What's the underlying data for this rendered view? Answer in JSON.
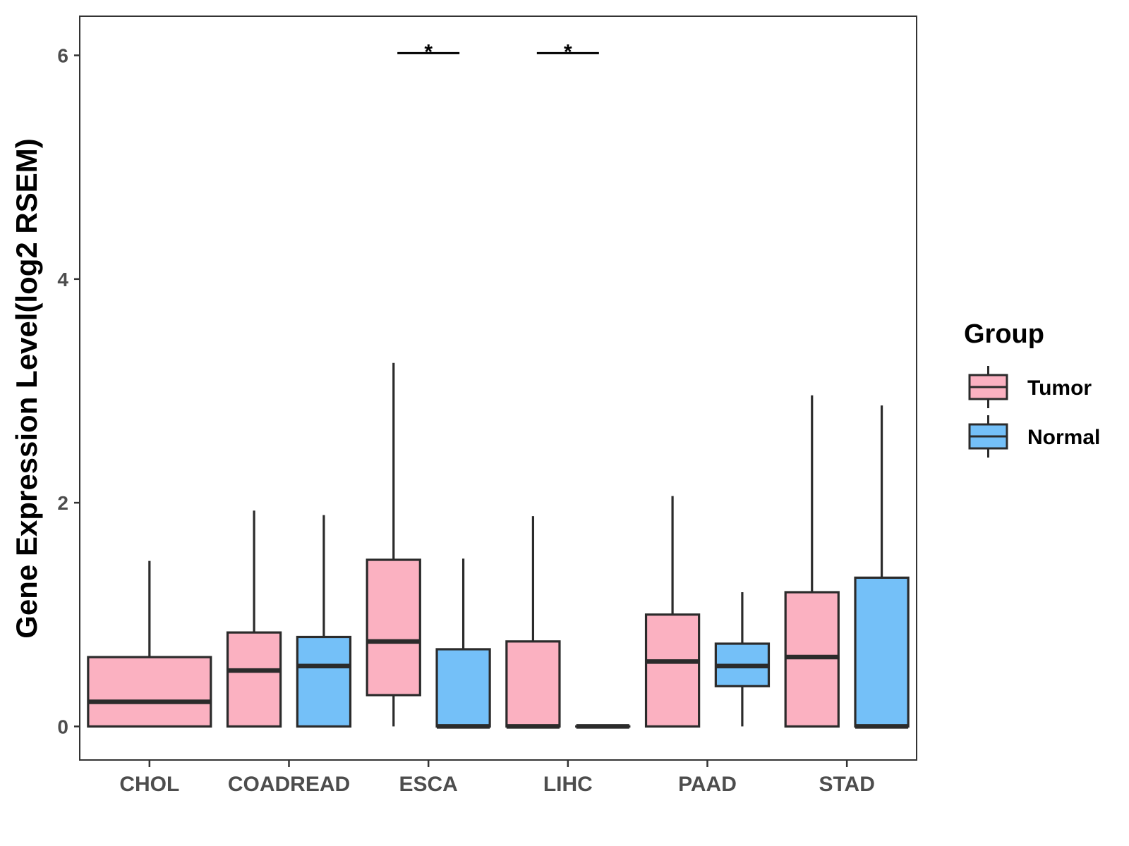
{
  "chart_data": {
    "type": "boxplot",
    "title": "",
    "xlabel": "",
    "ylabel": "Gene Expression Level(log2 RSEM)",
    "ylim": [
      -0.3,
      6.35
    ],
    "yticks": [
      0,
      2,
      4,
      6
    ],
    "ytick_labels": [
      "0",
      "2",
      "4",
      "6"
    ],
    "grid": false,
    "categories": [
      "CHOL",
      "COADREAD",
      "ESCA",
      "LIHC",
      "PAAD",
      "STAD"
    ],
    "legend": {
      "title": "Group",
      "position": "right",
      "entries": [
        {
          "name": "Tumor",
          "color": "#FBB1C1"
        },
        {
          "name": "Normal",
          "color": "#74C0F8"
        }
      ]
    },
    "series": [
      {
        "name": "Tumor",
        "color": "#FBB1C1",
        "boxes": [
          {
            "category": "CHOL",
            "min": 0,
            "q1": 0,
            "median": 0.22,
            "q3": 0.62,
            "max": 1.48
          },
          {
            "category": "COADREAD",
            "min": 0,
            "q1": 0,
            "median": 0.5,
            "q3": 0.84,
            "max": 1.93
          },
          {
            "category": "ESCA",
            "min": 0,
            "q1": 0.28,
            "median": 0.76,
            "q3": 1.49,
            "max": 3.25
          },
          {
            "category": "LIHC",
            "min": 0,
            "q1": 0,
            "median": 0,
            "q3": 0.76,
            "max": 1.88
          },
          {
            "category": "PAAD",
            "min": 0,
            "q1": 0,
            "median": 0.58,
            "q3": 1.0,
            "max": 2.06
          },
          {
            "category": "STAD",
            "min": 0,
            "q1": 0,
            "median": 0.62,
            "q3": 1.2,
            "max": 2.96
          }
        ]
      },
      {
        "name": "Normal",
        "color": "#74C0F8",
        "boxes": [
          {
            "category": "COADREAD",
            "min": 0,
            "q1": 0,
            "median": 0.54,
            "q3": 0.8,
            "max": 1.89
          },
          {
            "category": "ESCA",
            "min": 0,
            "q1": 0,
            "median": 0,
            "q3": 0.69,
            "max": 1.5
          },
          {
            "category": "LIHC",
            "min": 0,
            "q1": 0,
            "median": 0,
            "q3": 0,
            "max": 0
          },
          {
            "category": "PAAD",
            "min": 0,
            "q1": 0.36,
            "median": 0.54,
            "q3": 0.74,
            "max": 1.2
          },
          {
            "category": "STAD",
            "min": 0,
            "q1": 0,
            "median": 0,
            "q3": 1.33,
            "max": 2.87
          }
        ]
      }
    ],
    "annotations": [
      {
        "category": "ESCA",
        "label": "*",
        "y": 6.02
      },
      {
        "category": "LIHC",
        "label": "*",
        "y": 6.02
      }
    ]
  }
}
